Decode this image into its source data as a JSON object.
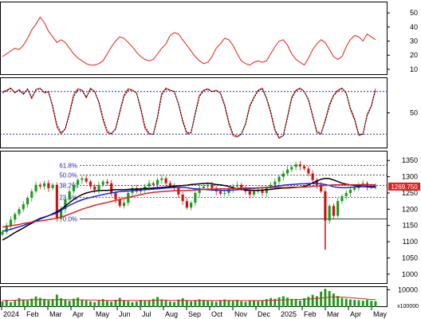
{
  "chart_data": [
    {
      "type": "line",
      "panel": "top-indicator",
      "ylim": [
        6,
        58
      ],
      "y_ticks": [
        "50",
        "40",
        "30",
        "20",
        "10"
      ],
      "color": "#e02020",
      "series": [
        {
          "values": [
            19,
            21,
            23,
            25,
            24,
            27,
            32,
            38,
            42,
            47,
            43,
            37,
            33,
            29,
            31,
            29,
            25,
            21,
            18,
            16,
            14,
            13,
            13,
            14,
            16,
            21,
            26,
            30,
            33,
            32,
            29,
            26,
            22,
            19,
            17,
            16,
            17,
            21,
            25,
            28,
            34,
            36,
            35,
            31,
            27,
            23,
            19,
            16,
            14,
            15,
            19,
            25,
            28,
            32,
            31,
            27,
            21,
            16,
            14,
            13,
            15,
            16,
            15,
            16,
            21,
            26,
            30,
            31,
            27,
            21,
            17,
            15,
            13,
            18,
            24,
            28,
            31,
            29,
            24,
            19,
            17,
            19,
            26,
            31,
            34,
            33,
            30,
            35,
            33,
            31
          ]
        }
      ]
    },
    {
      "type": "line",
      "panel": "middle-oscillator",
      "ylim": [
        0,
        100
      ],
      "y_ticks": [
        "50"
      ],
      "reference_lines": [
        80,
        20
      ],
      "series": [
        {
          "color": "#e02020",
          "style": "solid",
          "values": [
            80,
            82,
            85,
            78,
            83,
            76,
            84,
            70,
            83,
            85,
            78,
            80,
            58,
            30,
            20,
            28,
            50,
            76,
            84,
            82,
            71,
            85,
            80,
            65,
            40,
            22,
            20,
            28,
            52,
            75,
            84,
            82,
            78,
            55,
            28,
            20,
            20,
            45,
            78,
            85,
            82,
            80,
            62,
            38,
            20,
            22,
            50,
            75,
            82,
            84,
            80,
            82,
            78,
            60,
            35,
            18,
            16,
            20,
            35,
            60,
            72,
            82,
            85,
            70,
            50,
            25,
            14,
            18,
            45,
            72,
            82,
            85,
            80,
            68,
            45,
            22,
            20,
            40,
            62,
            75,
            82,
            85,
            78,
            55,
            40,
            18,
            20,
            48,
            60,
            84
          ]
        },
        {
          "color": "#000000",
          "style": "dashed",
          "values": [
            78,
            81,
            84,
            79,
            82,
            77,
            83,
            72,
            82,
            84,
            79,
            79,
            60,
            33,
            22,
            27,
            48,
            73,
            82,
            82,
            72,
            83,
            80,
            66,
            43,
            24,
            21,
            27,
            50,
            73,
            82,
            82,
            78,
            57,
            31,
            21,
            20,
            43,
            75,
            83,
            82,
            80,
            63,
            40,
            22,
            22,
            48,
            73,
            81,
            83,
            80,
            81,
            78,
            62,
            37,
            20,
            17,
            20,
            34,
            58,
            71,
            81,
            84,
            71,
            52,
            27,
            15,
            18,
            43,
            70,
            81,
            84,
            80,
            69,
            47,
            24,
            21,
            38,
            60,
            74,
            81,
            84,
            78,
            57,
            42,
            20,
            20,
            46,
            59,
            82
          ]
        }
      ]
    },
    {
      "type": "candlestick",
      "panel": "price",
      "ylim": [
        970,
        1380
      ],
      "y_ticks": [
        "1350",
        "1300",
        "1250",
        "1200",
        "1150",
        "1100",
        "1050",
        "1000"
      ],
      "current_price_label": "1269.750",
      "fibonacci_labels": [
        "61.8%",
        "50.0%",
        "38.2%",
        "23.6%",
        "0.0%"
      ],
      "fibonacci_levels": [
        1335,
        1305,
        1273,
        1236,
        1170
      ],
      "moving_averages": [
        {
          "color": "#000000",
          "values": [
            1105,
            1112,
            1120,
            1128,
            1135,
            1142,
            1150,
            1157,
            1163,
            1170,
            1175,
            1180,
            1186,
            1192,
            1200,
            1210,
            1220,
            1230,
            1238,
            1245,
            1250,
            1253,
            1256,
            1257,
            1258,
            1258,
            1259,
            1260,
            1260,
            1260,
            1261,
            1262,
            1262,
            1263,
            1264,
            1264,
            1265,
            1266,
            1267,
            1268,
            1270,
            1271,
            1272,
            1273,
            1274,
            1276,
            1277,
            1278,
            1279,
            1280,
            1278,
            1276,
            1275,
            1273,
            1270,
            1266,
            1263,
            1261,
            1259,
            1258,
            1258,
            1258,
            1259,
            1260,
            1261,
            1263,
            1264,
            1265,
            1265,
            1266,
            1267,
            1268,
            1270,
            1275,
            1281,
            1287,
            1292,
            1295,
            1294,
            1290,
            1285,
            1280,
            1277,
            1275,
            1273,
            1272,
            1270,
            1269,
            1268,
            1268
          ]
        },
        {
          "color": "#2020e0",
          "values": [
            1132,
            1135,
            1138,
            1142,
            1146,
            1150,
            1155,
            1160,
            1166,
            1172,
            1176,
            1180,
            1184,
            1188,
            1196,
            1205,
            1212,
            1218,
            1224,
            1229,
            1233,
            1236,
            1239,
            1242,
            1245,
            1248,
            1250,
            1252,
            1254,
            1255,
            1256,
            1257,
            1258,
            1259,
            1260,
            1261,
            1262,
            1263,
            1264,
            1265,
            1266,
            1267,
            1267,
            1267,
            1266,
            1264,
            1263,
            1262,
            1261,
            1260,
            1259,
            1259,
            1258,
            1258,
            1258,
            1259,
            1260,
            1261,
            1262,
            1263,
            1264,
            1265,
            1266,
            1267,
            1268,
            1270,
            1272,
            1274,
            1275,
            1276,
            1277,
            1278,
            1278,
            1279,
            1279,
            1279,
            1278,
            1276,
            1273,
            1269,
            1267,
            1266,
            1266,
            1267,
            1268,
            1269,
            1270,
            1270,
            1270,
            1271
          ]
        },
        {
          "color": "#e02020",
          "values": [
            1145,
            1147,
            1149,
            1151,
            1153,
            1156,
            1158,
            1160,
            1162,
            1164,
            1166,
            1168,
            1170,
            1172,
            1176,
            1180,
            1185,
            1190,
            1195,
            1200,
            1204,
            1208,
            1212,
            1215,
            1218,
            1221,
            1224,
            1227,
            1230,
            1233,
            1236,
            1239,
            1242,
            1245,
            1248,
            1250,
            1252,
            1253,
            1254,
            1255,
            1256,
            1257,
            1257,
            1257,
            1258,
            1258,
            1259,
            1260,
            1261,
            1262,
            1262,
            1262,
            1263,
            1263,
            1263,
            1264,
            1264,
            1265,
            1265,
            1265,
            1265,
            1266,
            1266,
            1266,
            1267,
            1267,
            1267,
            1267,
            1267,
            1268,
            1268,
            1268,
            1268,
            1269,
            1270,
            1271,
            1272,
            1273,
            1274,
            1275,
            1275,
            1275,
            1275,
            1275,
            1275,
            1275,
            1275,
            1275,
            1275,
            1275
          ]
        }
      ],
      "close": [
        1130,
        1150,
        1168,
        1185,
        1200,
        1215,
        1235,
        1255,
        1275,
        1270,
        1280,
        1265,
        1275,
        1170,
        1200,
        1230,
        1255,
        1275,
        1290,
        1295,
        1285,
        1270,
        1260,
        1275,
        1285,
        1280,
        1250,
        1230,
        1210,
        1220,
        1250,
        1265,
        1255,
        1260,
        1270,
        1280,
        1275,
        1290,
        1295,
        1280,
        1270,
        1265,
        1245,
        1225,
        1205,
        1220,
        1250,
        1265,
        1270,
        1275,
        1265,
        1255,
        1248,
        1250,
        1262,
        1270,
        1275,
        1265,
        1255,
        1245,
        1255,
        1260,
        1250,
        1265,
        1275,
        1285,
        1300,
        1310,
        1322,
        1330,
        1338,
        1332,
        1325,
        1310,
        1290,
        1275,
        1255,
        1165,
        1210,
        1180,
        1225,
        1240,
        1250,
        1260,
        1265,
        1275,
        1280,
        1270,
        1268,
        1270
      ]
    },
    {
      "type": "bar",
      "panel": "volume",
      "ylim": [
        0,
        12000
      ],
      "y_ticks": [
        "10000"
      ],
      "multiplier_label": "x100000",
      "values": [
        3200,
        4100,
        2800,
        3600,
        5200,
        4400,
        3800,
        4900,
        6100,
        5300,
        4700,
        3900,
        4500,
        7200,
        5100,
        4300,
        3600,
        4800,
        5500,
        4200,
        3700,
        3300,
        2900,
        3800,
        4600,
        3500,
        3100,
        4200,
        5300,
        3900,
        3400,
        2800,
        3200,
        4100,
        3600,
        3900,
        4700,
        5800,
        4400,
        3700,
        3200,
        2900,
        4300,
        5100,
        3600,
        3300,
        3800,
        4500,
        4100,
        3600,
        3400,
        3100,
        3900,
        4400,
        3700,
        3500,
        4200,
        3300,
        3000,
        3600,
        3800,
        3400,
        3900,
        4600,
        5200,
        4800,
        5600,
        6200,
        5400,
        4700,
        4200,
        3800,
        5100,
        5900,
        7100,
        6300,
        8900,
        10500,
        9200,
        7800,
        6400,
        5200,
        4800,
        4400,
        4100,
        3900,
        3700,
        4200,
        3600,
        3400
      ],
      "ma_values": [
        3800,
        3850,
        3900,
        3950,
        4000,
        4100,
        4150,
        4200,
        4250,
        4300,
        4350,
        4300,
        4250,
        4300,
        4350,
        4300,
        4250,
        4200,
        4200,
        4150,
        4100,
        4050,
        4000,
        3950,
        3900,
        3850,
        3850,
        3800,
        3800,
        3850,
        3850,
        3800,
        3800,
        3800,
        3850,
        3850,
        3900,
        3950,
        4000,
        3950,
        3900,
        3850,
        3850,
        3900,
        3900,
        3850,
        3850,
        3850,
        3850,
        3850,
        3800,
        3800,
        3800,
        3800,
        3800,
        3800,
        3800,
        3750,
        3750,
        3750,
        3750,
        3750,
        3800,
        3850,
        3900,
        3950,
        4000,
        4100,
        4200,
        4300,
        4400,
        4450,
        4500,
        4600,
        4800,
        5000,
        5200,
        5500,
        5700,
        5800,
        5800,
        5700,
        5600,
        5400,
        5200,
        5000,
        4800,
        4600,
        4400,
        4200
      ]
    }
  ],
  "x_axis": {
    "labels": [
      "2024",
      "Feb",
      "Mar",
      "Apr",
      "May",
      "Jun",
      "Jul",
      "Aug",
      "Sep",
      "Oct",
      "Nov",
      "Dec",
      "2025",
      "Feb",
      "Mar",
      "Apr",
      "May"
    ]
  }
}
